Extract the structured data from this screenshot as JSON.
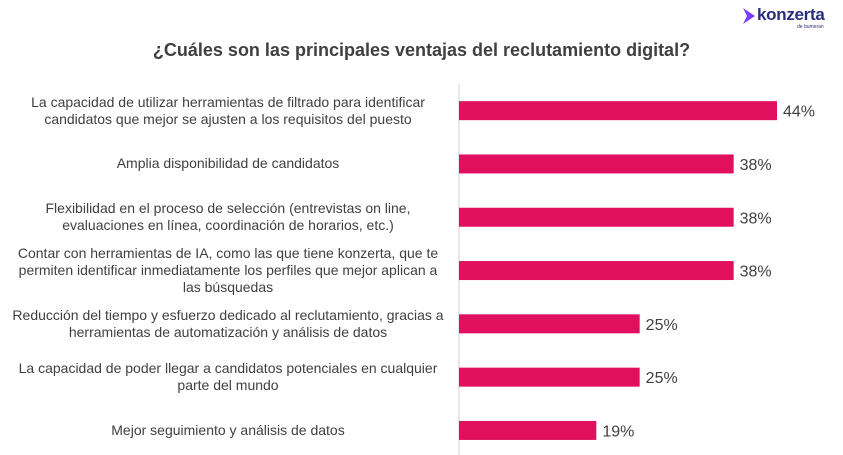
{
  "brand": {
    "name": "konzerta",
    "tagline": "de bumeran",
    "color": "#2b2d7c",
    "accent_color": "#7a3cff"
  },
  "chart_data": {
    "type": "bar",
    "orientation": "horizontal",
    "title": "¿Cuáles son las principales ventajas del reclutamiento digital?",
    "categories": [
      "La capacidad de utilizar herramientas de filtrado para identificar candidatos que mejor se ajusten a los requisitos del puesto",
      "Amplia disponibilidad de candidatos",
      "Flexibilidad en el proceso de selección (entrevistas on line, evaluaciones en línea, coordinación de horarios, etc.)",
      "Contar con herramientas de IA, como las que tiene konzerta, que te permiten identificar inmediatamente los perfiles que mejor aplican a las búsquedas",
      "Reducción del tiempo y esfuerzo dedicado al reclutamiento, gracias a herramientas de automatización y análisis de datos",
      "La capacidad de poder llegar a candidatos potenciales en cualquier parte del mundo",
      "Mejor seguimiento y análisis de datos"
    ],
    "values": [
      44,
      38,
      38,
      38,
      25,
      25,
      19
    ],
    "value_labels": [
      "44%",
      "38%",
      "38%",
      "38%",
      "25%",
      "25%",
      "19%"
    ],
    "xlim": [
      0,
      44
    ],
    "bar_color": "#e0105f",
    "grid": false,
    "legend": "none"
  }
}
